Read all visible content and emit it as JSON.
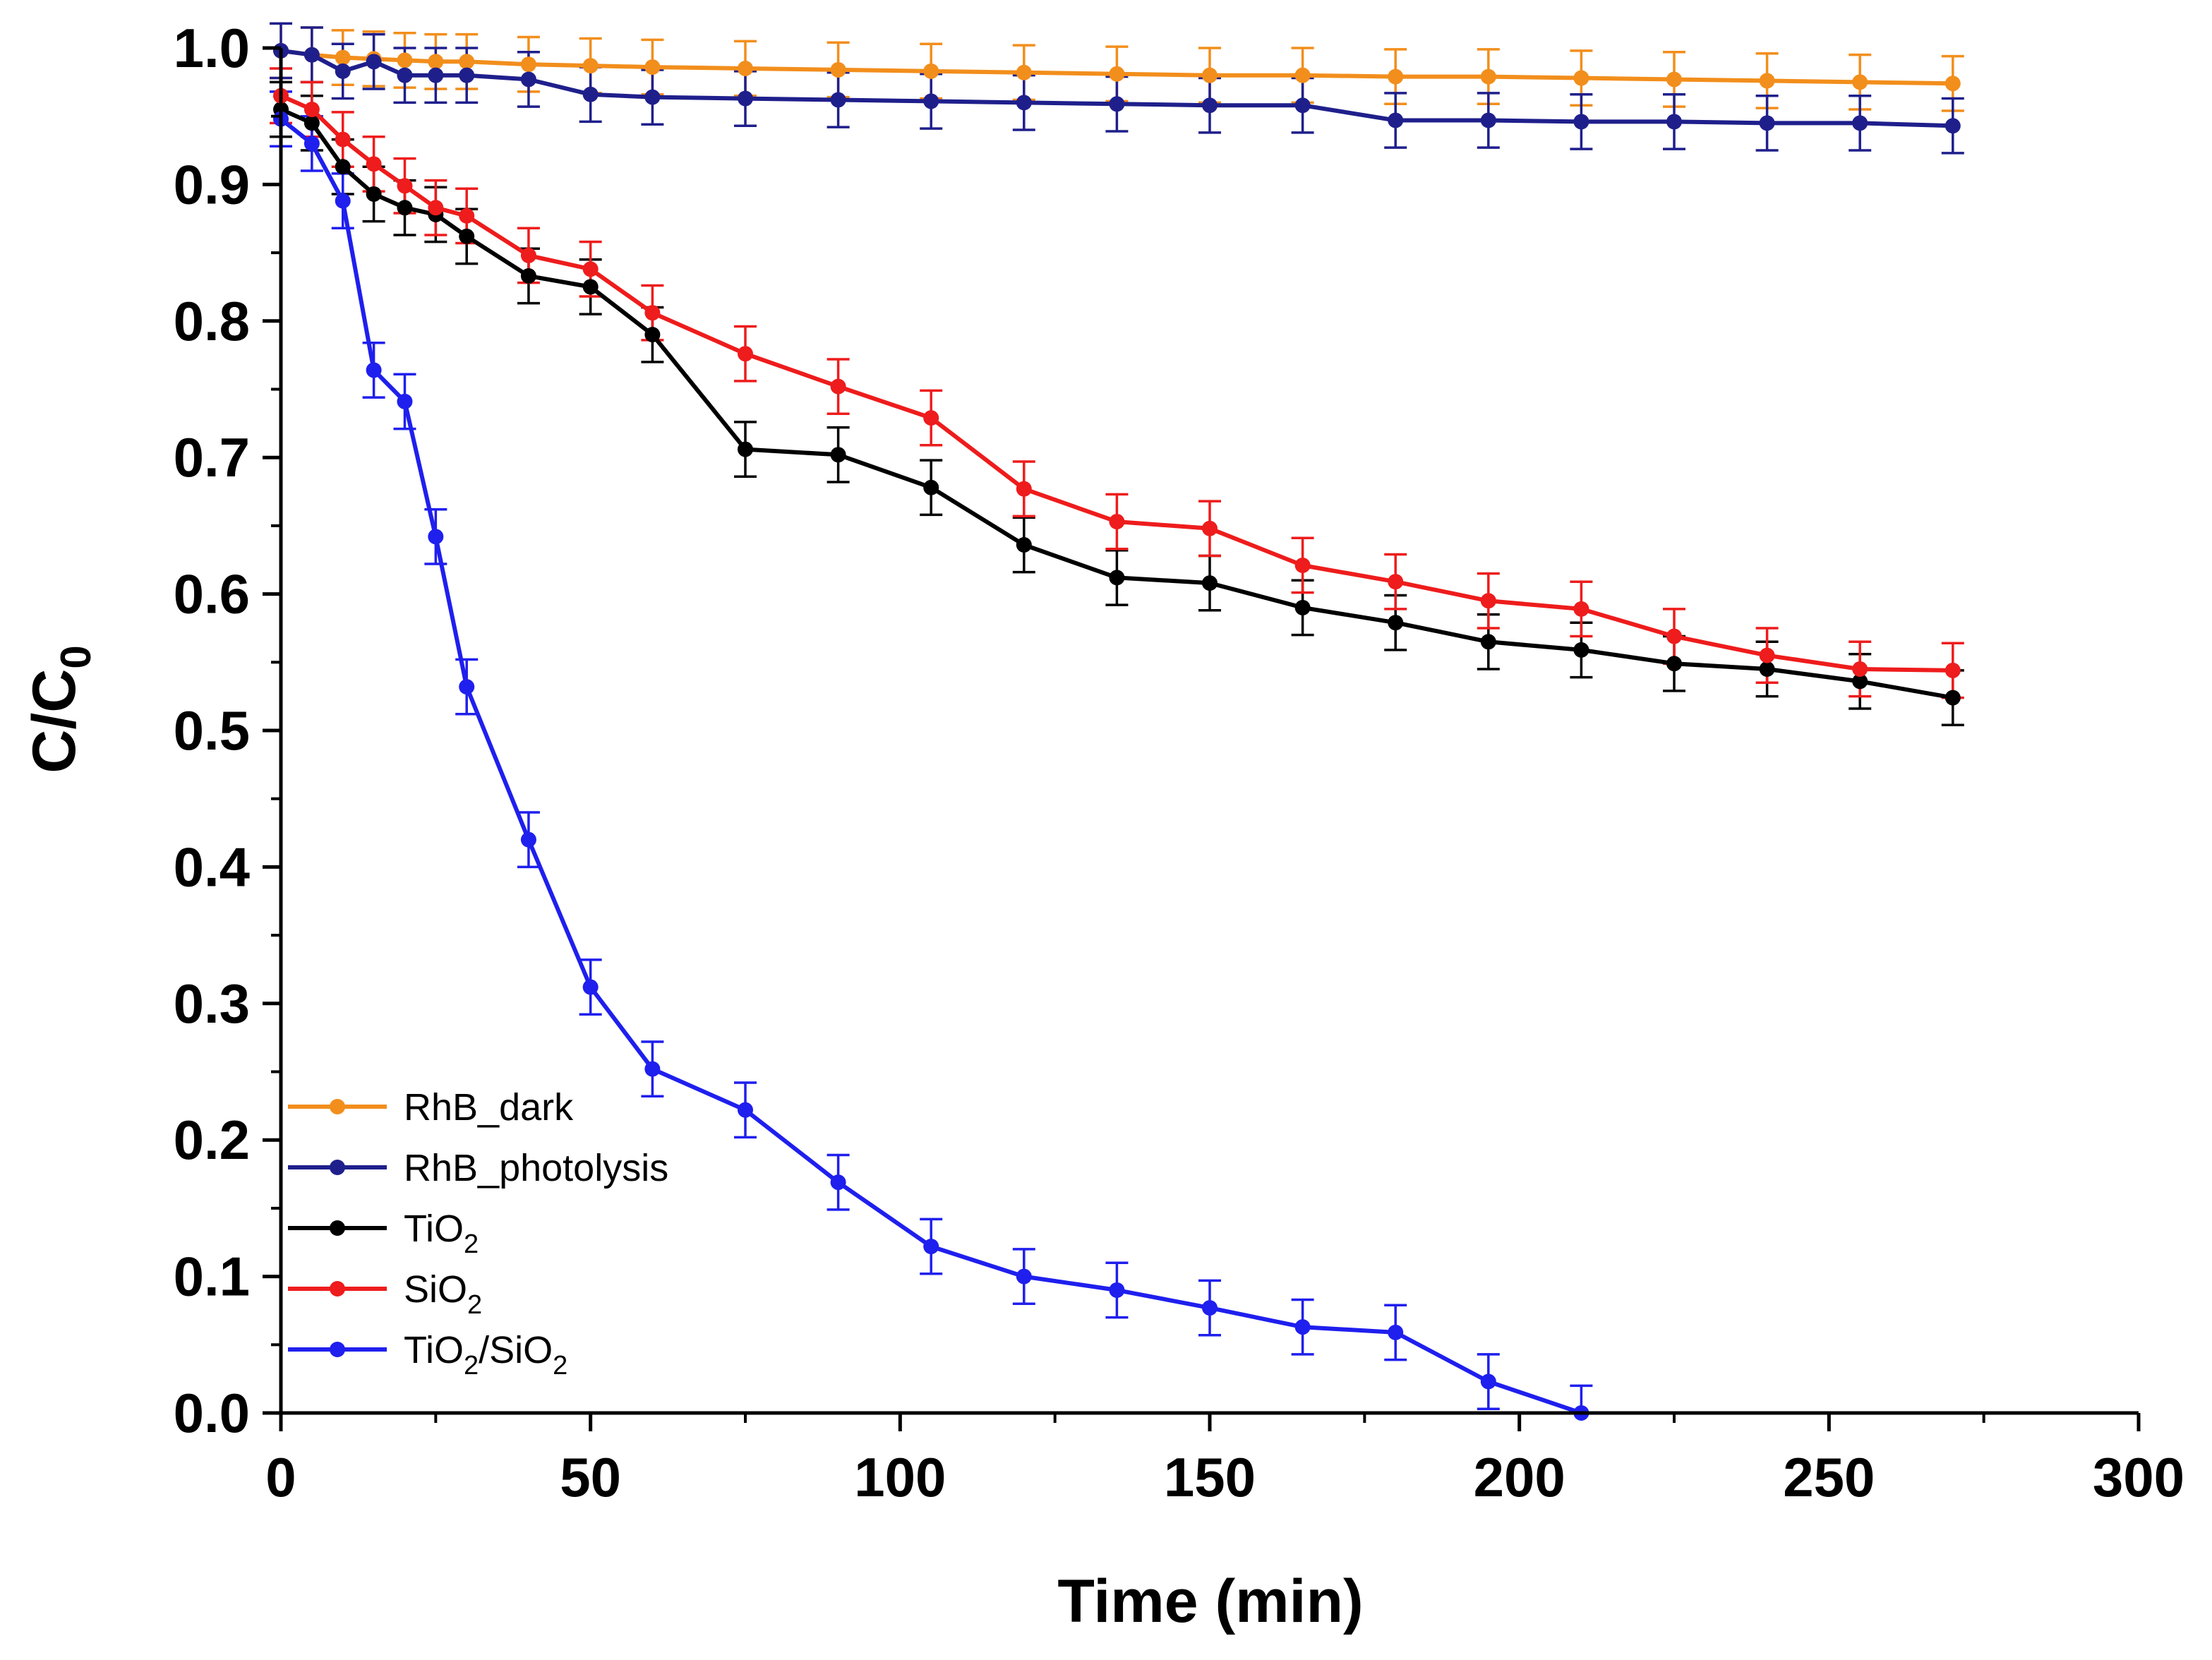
{
  "chart_data": {
    "type": "line",
    "title": "",
    "xlabel": "Time (min)",
    "ylabel": {
      "main": "C/C",
      "sub": "0"
    },
    "xlim": [
      0,
      300
    ],
    "ylim": [
      0,
      1.0
    ],
    "xticks": [
      0,
      50,
      100,
      150,
      200,
      250,
      300
    ],
    "xtick_labels": [
      "0",
      "50",
      "100",
      "150",
      "200",
      "250",
      "300"
    ],
    "yticks": [
      0,
      0.1,
      0.2,
      0.3,
      0.4,
      0.5,
      0.6,
      0.7,
      0.8,
      0.9,
      1.0
    ],
    "ytick_labels": [
      "0.0",
      "0.1",
      "0.2",
      "0.3",
      "0.4",
      "0.5",
      "0.6",
      "0.7",
      "0.8",
      "0.9",
      "1.0"
    ],
    "grid": false,
    "legend_position": "bottom-left",
    "series": [
      {
        "name": "RhB_dark",
        "label": {
          "parts": [
            {
              "text": "RhB_dark"
            }
          ]
        },
        "color": "#f28e1c",
        "x": [
          0,
          5,
          10,
          15,
          20,
          25,
          30,
          40,
          50,
          60,
          75,
          90,
          105,
          120,
          135,
          150,
          165,
          180,
          195,
          210,
          225,
          240,
          255,
          270
        ],
        "y": [
          0.998,
          0.995,
          0.993,
          0.992,
          0.991,
          0.99,
          0.99,
          0.988,
          0.987,
          0.986,
          0.985,
          0.984,
          0.983,
          0.982,
          0.981,
          0.98,
          0.98,
          0.979,
          0.979,
          0.978,
          0.977,
          0.976,
          0.975,
          0.974
        ],
        "error": 0.02
      },
      {
        "name": "RhB_photolysis",
        "label": {
          "parts": [
            {
              "text": "RhB_photolysis"
            }
          ]
        },
        "color": "#1f1f8c",
        "x": [
          0,
          5,
          10,
          15,
          20,
          25,
          30,
          40,
          50,
          60,
          75,
          90,
          105,
          120,
          135,
          150,
          165,
          180,
          195,
          210,
          225,
          240,
          255,
          270
        ],
        "y": [
          0.998,
          0.995,
          0.983,
          0.99,
          0.98,
          0.98,
          0.98,
          0.977,
          0.966,
          0.964,
          0.963,
          0.962,
          0.961,
          0.96,
          0.959,
          0.958,
          0.958,
          0.947,
          0.947,
          0.946,
          0.946,
          0.945,
          0.945,
          0.943
        ],
        "error": 0.02
      },
      {
        "name": "TiO2",
        "label": {
          "parts": [
            {
              "text": "TiO"
            },
            {
              "sub": "2"
            }
          ]
        },
        "color": "#000000",
        "x": [
          0,
          5,
          10,
          15,
          20,
          25,
          30,
          40,
          50,
          60,
          75,
          90,
          105,
          120,
          135,
          150,
          165,
          180,
          195,
          210,
          225,
          240,
          255,
          270
        ],
        "y": [
          0.955,
          0.945,
          0.913,
          0.893,
          0.883,
          0.878,
          0.862,
          0.833,
          0.825,
          0.79,
          0.706,
          0.702,
          0.678,
          0.636,
          0.612,
          0.608,
          0.59,
          0.579,
          0.565,
          0.559,
          0.549,
          0.545,
          0.536,
          0.524
        ],
        "error": 0.02
      },
      {
        "name": "SiO2",
        "label": {
          "parts": [
            {
              "text": "SiO"
            },
            {
              "sub": "2"
            }
          ]
        },
        "color": "#ee1c1c",
        "x": [
          0,
          5,
          10,
          15,
          20,
          25,
          30,
          40,
          50,
          60,
          75,
          90,
          105,
          120,
          135,
          150,
          165,
          180,
          195,
          210,
          225,
          240,
          255,
          270
        ],
        "y": [
          0.965,
          0.955,
          0.933,
          0.915,
          0.899,
          0.883,
          0.877,
          0.848,
          0.838,
          0.806,
          0.776,
          0.752,
          0.729,
          0.677,
          0.653,
          0.648,
          0.621,
          0.609,
          0.595,
          0.589,
          0.569,
          0.555,
          0.545,
          0.544
        ],
        "error": 0.02
      },
      {
        "name": "TiO2/SiO2",
        "label": {
          "parts": [
            {
              "text": "TiO"
            },
            {
              "sub": "2"
            },
            {
              "text": "/SiO"
            },
            {
              "sub": "2"
            }
          ]
        },
        "color": "#1f1fee",
        "x": [
          0,
          5,
          10,
          15,
          20,
          25,
          30,
          40,
          50,
          60,
          75,
          90,
          105,
          120,
          135,
          150,
          165,
          180,
          195,
          210
        ],
        "y": [
          0.948,
          0.93,
          0.888,
          0.764,
          0.741,
          0.642,
          0.532,
          0.42,
          0.312,
          0.252,
          0.222,
          0.169,
          0.122,
          0.1,
          0.09,
          0.077,
          0.063,
          0.059,
          0.023,
          0.0
        ],
        "error": 0.02
      }
    ]
  }
}
